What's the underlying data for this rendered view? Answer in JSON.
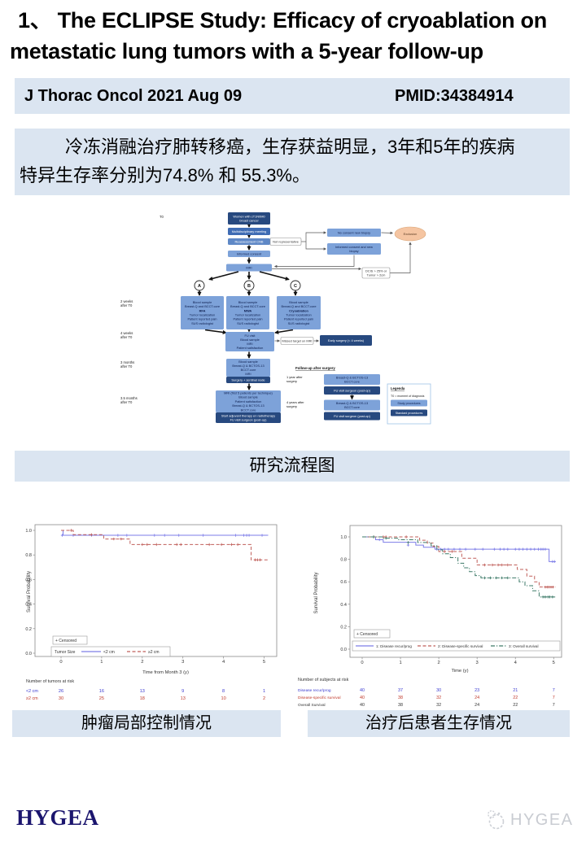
{
  "title": {
    "line1": "1、 The ECLIPSE Study: Efficacy of cryoablation on",
    "line2": "metastatic lung tumors with a 5-year follow-up"
  },
  "info_bar": {
    "journal": "J Thorac Oncol 2021 Aug 09",
    "pmid": "PMID:34384914",
    "bg_color": "#dbe5f1"
  },
  "summary": {
    "line1": "冷冻消融治疗肺转移癌，生存获益明显，3年和5年的疾病",
    "line2": "特异生存率分别为74.8% 和 55.3%。"
  },
  "section_labels": {
    "flowchart": "研究流程图",
    "left_chart": "肿瘤局部控制情况",
    "right_chart": "治疗后患者生存情况"
  },
  "flowchart": {
    "time_labels": [
      "T0",
      "2 weeks\nafter T0",
      "4 weeks\nafter T0",
      "3 months\nafter T0",
      "3.5 months\nafter T0"
    ],
    "circles": [
      "A",
      "B",
      "C"
    ],
    "followup_heading": "Follow-up after surgery",
    "nodes": {
      "start": {
        "lines": [
          "Women with cT1N0M0",
          "breast cancer"
        ]
      },
      "meeting": {
        "lines": [
          "Multidisciplinary meeting"
        ]
      },
      "cnb": {
        "lines": [
          "Reassessment CNB"
        ]
      },
      "notrep": {
        "lines": [
          "Not representative"
        ]
      },
      "nocon": {
        "lines": [
          "No consent new biopsy"
        ]
      },
      "infnew": {
        "lines": [
          "Informed consent and new",
          "biopsy"
        ]
      },
      "excl": {
        "lines": [
          "Exclusion"
        ]
      },
      "infcons": {
        "lines": [
          "Informed consent"
        ]
      },
      "mri": {
        "lines": [
          "MRI"
        ]
      },
      "dcis": {
        "lines": [
          "DCIS > 25% or",
          "Tumor > 2cm"
        ]
      },
      "trtA": {
        "lines": [
          "Blood sample",
          "Breast-Q and BCCT.core",
          "RFA",
          "Tumor localization",
          "Patient reported pain",
          "SUS radiologist"
        ],
        "bold_line": 2
      },
      "trtB": {
        "lines": [
          "Blood sample",
          "Breast-Q and BCCT.core",
          "MWA",
          "Tumor localization",
          "Patient reported pain",
          "SUS radiologist"
        ],
        "bold_line": 2
      },
      "trtC": {
        "lines": [
          "Blood sample",
          "Breast-Q and BCCT.core",
          "Cryoablation",
          "Tumor localization",
          "Patient reported pain",
          "SUS radiologist"
        ],
        "bold_line": 2
      },
      "fuvisit": {
        "lines": [
          "FU visit",
          "Blood sample",
          "MRI",
          "Patient satisfaction"
        ]
      },
      "missed": {
        "lines": [
          "Missed target on MRI"
        ]
      },
      "early": {
        "lines": [
          "Early surgery (< 4 weeks)"
        ]
      },
      "m3": {
        "lines": [
          "Blood sample",
          "Breast-Q & BCTOS-13",
          "BCCT.core",
          "MRI"
        ]
      },
      "m3dark": {
        "lines": [
          "Surgery + sentinel node"
        ]
      },
      "m35": {
        "lines": [
          "MRI (first 5 patients per technique)",
          "Blood sample",
          "Patient satisfaction",
          "Breast-Q & BCTOS-13",
          "BCCT.core"
        ]
      },
      "m35dark": {
        "lines": [
          "Start adjuvant therapy en radiotherapy",
          "FU visit surgeon (post-op)"
        ]
      },
      "y1label": {
        "lines": [
          "1 year after",
          "surgery"
        ]
      },
      "y1light": {
        "lines": [
          "Breast-Q & BCTOS-13",
          "BCCT.core"
        ]
      },
      "y1dark": {
        "lines": [
          "FU visit surgeon (post-op)"
        ]
      },
      "y4label": {
        "lines": [
          "4 years after",
          "surgery"
        ]
      },
      "y4light": {
        "lines": [
          "Breast-Q & BCTOS-13",
          "BCCT.core"
        ]
      },
      "y4dark": {
        "lines": [
          "FU visit surgeon (post-op)"
        ]
      }
    },
    "legend": {
      "title": "Legenda",
      "note": "T0 = moment of diagnosis",
      "study": "Study procedures",
      "standard": "Standard procedures"
    },
    "colors": {
      "dark_box": "#27497f",
      "mid_box": "#3f6cb4",
      "light_box": "#7da2d9",
      "exclusion": "#f5c5a2"
    }
  },
  "chart_data": [
    {
      "type": "line",
      "subtype": "kaplan-meier",
      "title": "",
      "ylabel": "Survival Probability",
      "xlabel": "Time from Month 3 (y)",
      "xlim": [
        0,
        5.15
      ],
      "ylim": [
        0,
        1.0
      ],
      "xticks": [
        0,
        1,
        2,
        3,
        4,
        5
      ],
      "yticks": [
        0.0,
        0.2,
        0.4,
        0.6,
        0.8,
        1.0
      ],
      "grid": false,
      "legend_position": "bottom-inside",
      "censored_label": "+ Censored",
      "legend_title": "Tumor Size",
      "series": [
        {
          "name": "<2 cm",
          "color": "#7d7de8",
          "dash": "solid",
          "steps": [
            [
              0,
              1.0
            ],
            [
              0.05,
              0.96
            ],
            [
              5.1,
              0.96
            ]
          ],
          "censors": [
            [
              0.03,
              0.96
            ],
            [
              0.3,
              0.96
            ],
            [
              0.75,
              0.96
            ],
            [
              1.4,
              0.96
            ],
            [
              1.62,
              0.96
            ],
            [
              2.3,
              0.96
            ],
            [
              2.55,
              0.96
            ],
            [
              2.9,
              0.96
            ],
            [
              3.5,
              0.96
            ],
            [
              4.3,
              0.96
            ],
            [
              4.5,
              0.96
            ],
            [
              4.57,
              0.96
            ],
            [
              4.63,
              0.96
            ],
            [
              4.95,
              0.96
            ]
          ]
        },
        {
          "name": "≥2 cm",
          "color": "#c05f5a",
          "dash": "dash",
          "steps": [
            [
              0,
              1.0
            ],
            [
              0.3,
              0.965
            ],
            [
              1.05,
              0.93
            ],
            [
              1.7,
              0.885
            ],
            [
              4.68,
              0.76
            ],
            [
              5.1,
              0.76
            ]
          ],
          "censors": [
            [
              0.25,
              1.0
            ],
            [
              0.75,
              0.965
            ],
            [
              1.3,
              0.93
            ],
            [
              1.48,
              0.93
            ],
            [
              2.0,
              0.885
            ],
            [
              2.12,
              0.885
            ],
            [
              2.35,
              0.885
            ],
            [
              2.85,
              0.885
            ],
            [
              2.95,
              0.885
            ],
            [
              3.65,
              0.885
            ],
            [
              3.95,
              0.885
            ],
            [
              4.2,
              0.885
            ],
            [
              4.35,
              0.885
            ],
            [
              4.78,
              0.76
            ],
            [
              4.84,
              0.76
            ],
            [
              4.9,
              0.76
            ]
          ]
        }
      ],
      "risk_table": {
        "title": "Number of tumors at risk",
        "rows": [
          {
            "label": "<2 cm",
            "color": "#3a3ad0",
            "values": [
              26,
              16,
              13,
              9,
              8,
              1
            ]
          },
          {
            "label": "≥2 cm",
            "color": "#c0392b",
            "values": [
              30,
              25,
              18,
              13,
              10,
              2
            ]
          }
        ]
      }
    },
    {
      "type": "line",
      "subtype": "kaplan-meier",
      "title": "",
      "ylabel": "Survival Probability",
      "xlabel": "Time (y)",
      "xlim": [
        0,
        5.1
      ],
      "ylim": [
        0,
        1.0
      ],
      "xticks": [
        0,
        1,
        2,
        3,
        4,
        5
      ],
      "yticks": [
        0.0,
        0.2,
        0.4,
        0.6,
        0.8,
        1.0
      ],
      "grid": false,
      "legend_position": "bottom-inside",
      "censored_label": "+ Censored",
      "legend_title": "",
      "series": [
        {
          "name": "1: Disease recur/prog",
          "color": "#7d7de8",
          "dash": "solid",
          "steps": [
            [
              0,
              1.0
            ],
            [
              0.35,
              0.975
            ],
            [
              0.55,
              0.952
            ],
            [
              1.4,
              0.927
            ],
            [
              1.6,
              0.908
            ],
            [
              1.9,
              0.89
            ],
            [
              4.88,
              0.78
            ],
            [
              5.05,
              0.78
            ]
          ],
          "censors": [
            [
              0.45,
              0.975
            ],
            [
              1.2,
              0.927
            ],
            [
              1.95,
              0.89
            ],
            [
              2.05,
              0.89
            ],
            [
              2.15,
              0.89
            ],
            [
              2.25,
              0.89
            ],
            [
              2.4,
              0.89
            ],
            [
              2.55,
              0.89
            ],
            [
              2.7,
              0.89
            ],
            [
              2.95,
              0.89
            ],
            [
              3.15,
              0.89
            ],
            [
              3.45,
              0.89
            ],
            [
              3.6,
              0.89
            ],
            [
              3.7,
              0.89
            ],
            [
              3.8,
              0.89
            ],
            [
              4.0,
              0.89
            ],
            [
              4.1,
              0.89
            ],
            [
              4.2,
              0.89
            ],
            [
              4.3,
              0.89
            ],
            [
              4.4,
              0.89
            ],
            [
              4.5,
              0.89
            ],
            [
              4.6,
              0.89
            ],
            [
              4.67,
              0.89
            ],
            [
              4.72,
              0.89
            ],
            [
              4.78,
              0.89
            ],
            [
              4.97,
              0.78
            ],
            [
              5.02,
              0.78
            ]
          ]
        },
        {
          "name": "2: Disease-specific survival",
          "color": "#c05f5a",
          "dash": "dash",
          "steps": [
            [
              0,
              1.0
            ],
            [
              1.5,
              0.97
            ],
            [
              1.7,
              0.945
            ],
            [
              1.85,
              0.915
            ],
            [
              2.0,
              0.87
            ],
            [
              2.6,
              0.81
            ],
            [
              3.0,
              0.75
            ],
            [
              4.05,
              0.71
            ],
            [
              4.3,
              0.65
            ],
            [
              4.5,
              0.6
            ],
            [
              4.62,
              0.553
            ],
            [
              5.05,
              0.553
            ]
          ],
          "censors": [
            [
              0.3,
              1.0
            ],
            [
              0.55,
              1.0
            ],
            [
              0.62,
              1.0
            ],
            [
              1.15,
              1.0
            ],
            [
              2.15,
              0.87
            ],
            [
              2.35,
              0.87
            ],
            [
              3.2,
              0.75
            ],
            [
              3.4,
              0.75
            ],
            [
              3.55,
              0.75
            ],
            [
              3.65,
              0.75
            ],
            [
              3.8,
              0.75
            ],
            [
              4.78,
              0.553
            ],
            [
              4.83,
              0.553
            ],
            [
              4.88,
              0.553
            ],
            [
              4.93,
              0.553
            ],
            [
              4.98,
              0.553
            ]
          ]
        },
        {
          "name": "3: Overall survival",
          "color": "#3d7a68",
          "dash": "dashdot",
          "steps": [
            [
              0,
              1.0
            ],
            [
              0.55,
              0.988
            ],
            [
              0.95,
              0.975
            ],
            [
              1.45,
              0.95
            ],
            [
              1.8,
              0.92
            ],
            [
              1.95,
              0.885
            ],
            [
              2.1,
              0.85
            ],
            [
              2.3,
              0.815
            ],
            [
              2.5,
              0.765
            ],
            [
              2.65,
              0.725
            ],
            [
              2.8,
              0.69
            ],
            [
              2.95,
              0.655
            ],
            [
              3.1,
              0.635
            ],
            [
              4.1,
              0.6
            ],
            [
              4.25,
              0.565
            ],
            [
              4.45,
              0.52
            ],
            [
              4.62,
              0.465
            ],
            [
              5.05,
              0.465
            ]
          ],
          "censors": [
            [
              0.3,
              1.0
            ],
            [
              0.62,
              0.988
            ],
            [
              1.2,
              0.95
            ],
            [
              3.2,
              0.635
            ],
            [
              3.35,
              0.635
            ],
            [
              3.5,
              0.635
            ],
            [
              3.65,
              0.635
            ],
            [
              3.8,
              0.635
            ],
            [
              4.72,
              0.465
            ],
            [
              4.78,
              0.465
            ],
            [
              4.85,
              0.465
            ],
            [
              4.9,
              0.465
            ],
            [
              4.97,
              0.465
            ]
          ]
        }
      ],
      "risk_table": {
        "title": "Number of subjects at risk",
        "rows": [
          {
            "label": "Disease recur/prog",
            "color": "#3a3ad0",
            "values": [
              40,
              37,
              30,
              23,
              21,
              7
            ]
          },
          {
            "label": "Disease-specific survival",
            "color": "#c0392b",
            "values": [
              40,
              38,
              32,
              24,
              22,
              7
            ]
          },
          {
            "label": "Overall Survival",
            "color": "#333333",
            "values": [
              40,
              38,
              32,
              24,
              22,
              7
            ]
          }
        ]
      }
    }
  ],
  "footer": {
    "brand": "HYGEA",
    "watermark": "HYGEA",
    "navy_color": "#191460",
    "teal_color": "#2aa79b"
  }
}
